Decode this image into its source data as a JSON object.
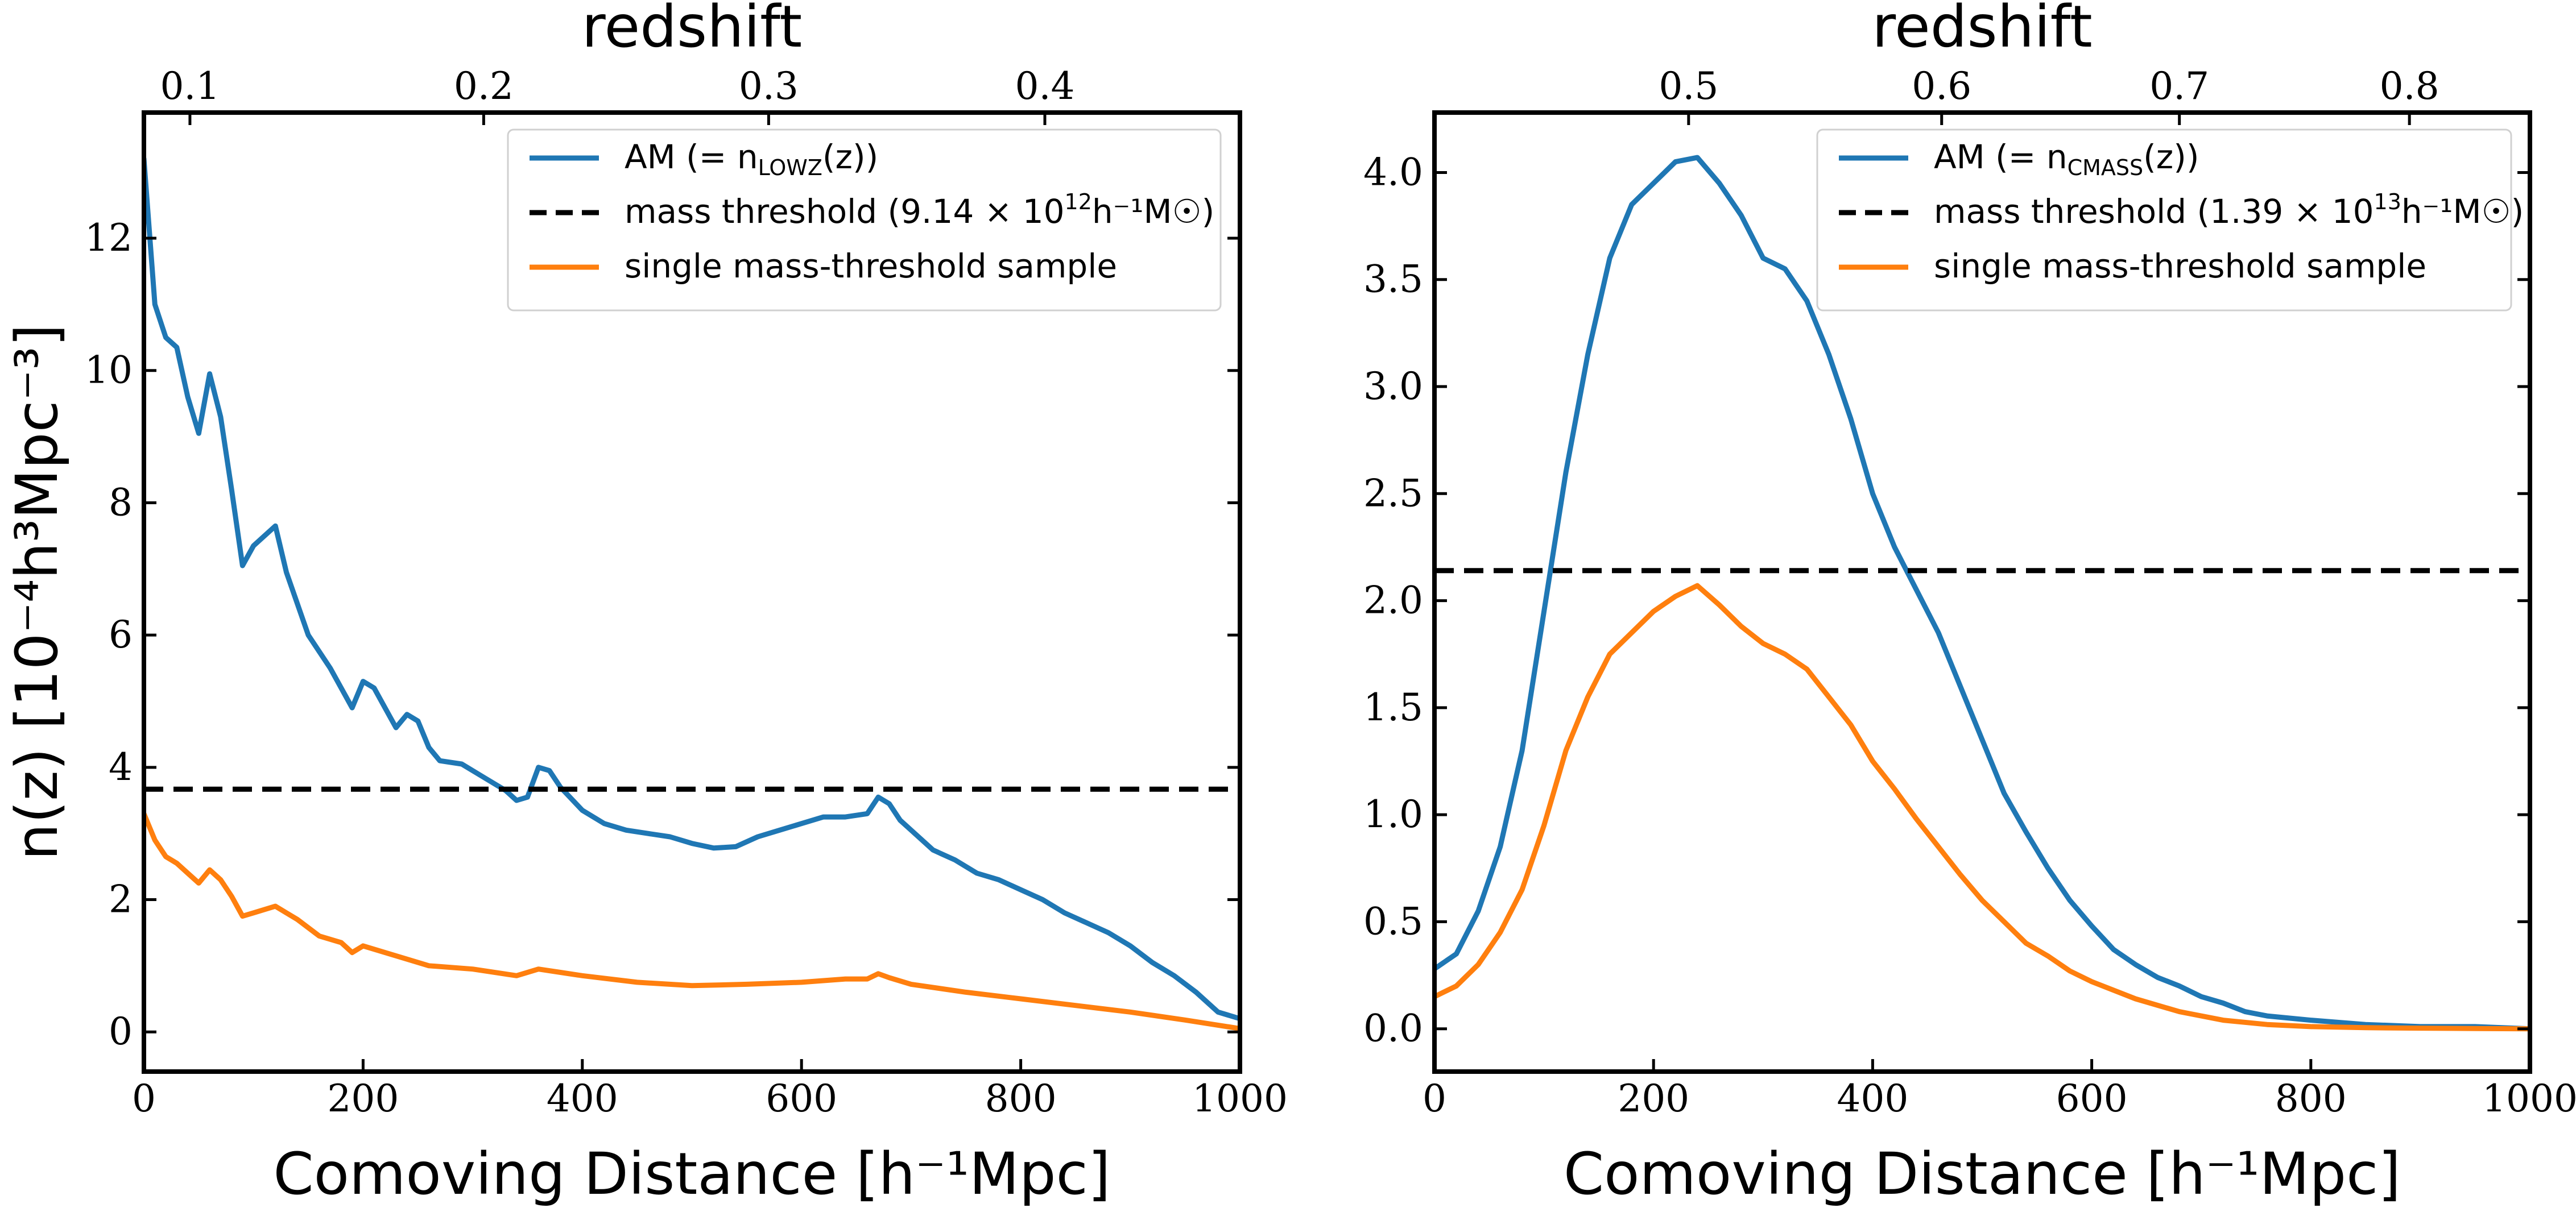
{
  "chart_data": [
    {
      "type": "line",
      "panel": "left",
      "xlabel": "Comoving Distance [h⁻¹Mpc]",
      "ylabel": "n(z) [10⁻⁴h³Mpc⁻³]",
      "top_label": "redshift",
      "xlim": [
        0,
        1000
      ],
      "ylim": [
        -0.6,
        13.9
      ],
      "x_ticks": [
        0,
        200,
        400,
        600,
        800,
        1000
      ],
      "y_ticks": [
        0,
        2,
        4,
        6,
        8,
        10,
        12
      ],
      "top_ticks": [
        {
          "label": "0.1",
          "distance": 42
        },
        {
          "label": "0.2",
          "distance": 310
        },
        {
          "label": "0.3",
          "distance": 570
        },
        {
          "label": "0.4",
          "distance": 822
        }
      ],
      "legend_position": "top-right",
      "legend": [
        {
          "text": "AM (= n",
          "sub": "LOWZ",
          "tail": "(z))",
          "color": "#1f77b4",
          "style": "solid"
        },
        {
          "text": "mass threshold (9.14 × 10",
          "sup": "12",
          "tail": "h⁻¹M☉)",
          "color": "#000000",
          "style": "dashed"
        },
        {
          "text": "single mass-threshold sample",
          "color": "#ff7f0e",
          "style": "solid"
        }
      ],
      "series": [
        {
          "name": "AM (= nLOWZ(z))",
          "color": "#1f77b4",
          "style": "solid",
          "x": [
            0,
            10,
            20,
            30,
            40,
            50,
            60,
            70,
            80,
            90,
            100,
            110,
            120,
            130,
            150,
            170,
            190,
            200,
            210,
            220,
            230,
            240,
            250,
            260,
            270,
            290,
            310,
            330,
            340,
            350,
            360,
            370,
            380,
            400,
            420,
            440,
            460,
            480,
            500,
            520,
            540,
            560,
            580,
            600,
            620,
            640,
            660,
            670,
            680,
            690,
            700,
            720,
            740,
            760,
            780,
            800,
            820,
            840,
            860,
            880,
            900,
            920,
            940,
            960,
            980,
            1000
          ],
          "y": [
            13.2,
            11.0,
            10.5,
            10.35,
            9.6,
            9.05,
            9.95,
            9.3,
            8.2,
            7.05,
            7.35,
            7.5,
            7.65,
            6.95,
            6.0,
            5.5,
            4.9,
            5.3,
            5.2,
            4.9,
            4.6,
            4.8,
            4.7,
            4.3,
            4.1,
            4.05,
            3.85,
            3.65,
            3.5,
            3.55,
            4.0,
            3.95,
            3.7,
            3.35,
            3.15,
            3.05,
            3.0,
            2.95,
            2.85,
            2.78,
            2.8,
            2.95,
            3.05,
            3.15,
            3.25,
            3.25,
            3.3,
            3.55,
            3.45,
            3.2,
            3.05,
            2.75,
            2.6,
            2.4,
            2.3,
            2.15,
            2.0,
            1.8,
            1.65,
            1.5,
            1.3,
            1.05,
            0.85,
            0.6,
            0.3,
            0.2
          ]
        },
        {
          "name": "mass threshold",
          "color": "#000000",
          "style": "dashed",
          "x": [
            0,
            1000
          ],
          "y": [
            3.67,
            3.67
          ]
        },
        {
          "name": "single mass-threshold sample",
          "color": "#ff7f0e",
          "style": "solid",
          "x": [
            0,
            10,
            20,
            30,
            40,
            50,
            60,
            70,
            80,
            90,
            100,
            120,
            140,
            160,
            180,
            190,
            200,
            220,
            240,
            260,
            300,
            340,
            360,
            380,
            400,
            450,
            500,
            550,
            600,
            640,
            660,
            670,
            680,
            700,
            750,
            800,
            850,
            900,
            950,
            1000
          ],
          "y": [
            3.3,
            2.9,
            2.65,
            2.55,
            2.4,
            2.25,
            2.45,
            2.3,
            2.05,
            1.75,
            1.8,
            1.9,
            1.7,
            1.45,
            1.35,
            1.2,
            1.3,
            1.2,
            1.1,
            1.0,
            0.95,
            0.85,
            0.95,
            0.9,
            0.85,
            0.75,
            0.7,
            0.72,
            0.75,
            0.8,
            0.8,
            0.88,
            0.82,
            0.72,
            0.6,
            0.5,
            0.4,
            0.3,
            0.18,
            0.05
          ]
        }
      ]
    },
    {
      "type": "line",
      "panel": "right",
      "xlabel": "Comoving Distance [h⁻¹Mpc]",
      "top_label": "redshift",
      "xlim": [
        0,
        1000
      ],
      "ylim": [
        -0.2,
        4.28
      ],
      "x_ticks": [
        0,
        200,
        400,
        600,
        800,
        1000
      ],
      "y_ticks": [
        0.0,
        0.5,
        1.0,
        1.5,
        2.0,
        2.5,
        3.0,
        3.5,
        4.0
      ],
      "y_tick_labels": [
        "0.0",
        "0.5",
        "1.0",
        "1.5",
        "2.0",
        "2.5",
        "3.0",
        "3.5",
        "4.0"
      ],
      "top_ticks": [
        {
          "label": "0.5",
          "distance": 232
        },
        {
          "label": "0.6",
          "distance": 463
        },
        {
          "label": "0.7",
          "distance": 680
        },
        {
          "label": "0.8",
          "distance": 890
        }
      ],
      "legend_position": "top-right",
      "legend": [
        {
          "text": "AM (= n",
          "sub": "CMASS",
          "tail": "(z))",
          "color": "#1f77b4",
          "style": "solid"
        },
        {
          "text": "mass threshold (1.39 × 10",
          "sup": "13",
          "tail": "h⁻¹M☉)",
          "color": "#000000",
          "style": "dashed"
        },
        {
          "text": "single mass-threshold sample",
          "color": "#ff7f0e",
          "style": "solid"
        }
      ],
      "series": [
        {
          "name": "AM (= nCMASS(z))",
          "color": "#1f77b4",
          "style": "solid",
          "x": [
            0,
            20,
            40,
            60,
            80,
            100,
            120,
            140,
            160,
            180,
            200,
            220,
            240,
            260,
            280,
            300,
            320,
            340,
            360,
            380,
            400,
            420,
            440,
            460,
            480,
            500,
            520,
            540,
            560,
            580,
            600,
            620,
            640,
            660,
            680,
            700,
            720,
            740,
            760,
            780,
            800,
            850,
            900,
            950,
            1000
          ],
          "y": [
            0.28,
            0.35,
            0.55,
            0.85,
            1.3,
            1.95,
            2.6,
            3.15,
            3.6,
            3.85,
            3.95,
            4.05,
            4.07,
            3.95,
            3.8,
            3.6,
            3.55,
            3.4,
            3.15,
            2.85,
            2.5,
            2.25,
            2.05,
            1.85,
            1.6,
            1.35,
            1.1,
            0.92,
            0.75,
            0.6,
            0.48,
            0.37,
            0.3,
            0.24,
            0.2,
            0.15,
            0.12,
            0.08,
            0.06,
            0.05,
            0.04,
            0.02,
            0.01,
            0.01,
            0.0
          ]
        },
        {
          "name": "mass threshold",
          "color": "#000000",
          "style": "dashed",
          "x": [
            0,
            1000
          ],
          "y": [
            2.14,
            2.14
          ]
        },
        {
          "name": "single mass-threshold sample",
          "color": "#ff7f0e",
          "style": "solid",
          "x": [
            0,
            20,
            40,
            60,
            80,
            100,
            120,
            140,
            160,
            180,
            200,
            220,
            240,
            260,
            280,
            300,
            320,
            340,
            360,
            380,
            400,
            420,
            440,
            460,
            480,
            500,
            520,
            540,
            560,
            580,
            600,
            640,
            680,
            720,
            760,
            800,
            850,
            900,
            950,
            1000
          ],
          "y": [
            0.15,
            0.2,
            0.3,
            0.45,
            0.65,
            0.95,
            1.3,
            1.55,
            1.75,
            1.85,
            1.95,
            2.02,
            2.07,
            1.98,
            1.88,
            1.8,
            1.75,
            1.68,
            1.55,
            1.42,
            1.25,
            1.12,
            0.98,
            0.85,
            0.72,
            0.6,
            0.5,
            0.4,
            0.34,
            0.27,
            0.22,
            0.14,
            0.08,
            0.04,
            0.02,
            0.01,
            0.005,
            0.003,
            0.001,
            0.0
          ]
        }
      ]
    }
  ]
}
